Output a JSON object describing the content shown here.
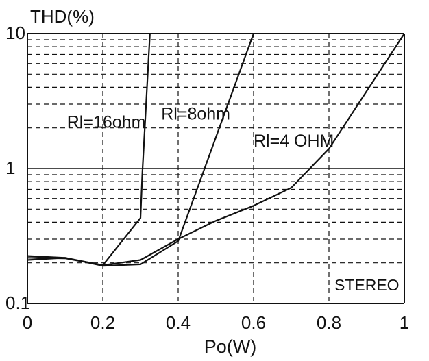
{
  "chart_data": {
    "type": "line",
    "title": "",
    "ylabel": "THD(%)",
    "xlabel": "Po(W)",
    "xlim": [
      0,
      1
    ],
    "ylim": [
      0.1,
      10
    ],
    "yscale": "log",
    "grid": true,
    "x_ticks": [
      "0",
      "0.2",
      "0.4",
      "0.6",
      "0.8",
      "1"
    ],
    "y_ticks": [
      "0.1",
      "1",
      "10"
    ],
    "annotation": "STEREO",
    "colors": {
      "line": "#111111",
      "grid": "#111111",
      "axis": "#111111",
      "background": "#ffffff"
    },
    "series": [
      {
        "name": "Rl=16ohm",
        "points": [
          [
            0.0,
            0.218
          ],
          [
            0.1,
            0.216
          ],
          [
            0.2,
            0.192
          ],
          [
            0.3,
            0.43
          ],
          [
            0.305,
            0.95
          ],
          [
            0.325,
            10.0
          ]
        ]
      },
      {
        "name": "Rl=8ohm",
        "points": [
          [
            0.0,
            0.21
          ],
          [
            0.1,
            0.218
          ],
          [
            0.2,
            0.19
          ],
          [
            0.3,
            0.195
          ],
          [
            0.4,
            0.29
          ],
          [
            0.47,
            1.0
          ],
          [
            0.6,
            10.0
          ]
        ]
      },
      {
        "name": "Rl=4 OHM",
        "points": [
          [
            0.0,
            0.225
          ],
          [
            0.1,
            0.218
          ],
          [
            0.2,
            0.192
          ],
          [
            0.3,
            0.21
          ],
          [
            0.4,
            0.3
          ],
          [
            0.5,
            0.41
          ],
          [
            0.6,
            0.53
          ],
          [
            0.7,
            0.72
          ],
          [
            0.8,
            1.4
          ],
          [
            1.0,
            10.0
          ]
        ]
      }
    ]
  }
}
